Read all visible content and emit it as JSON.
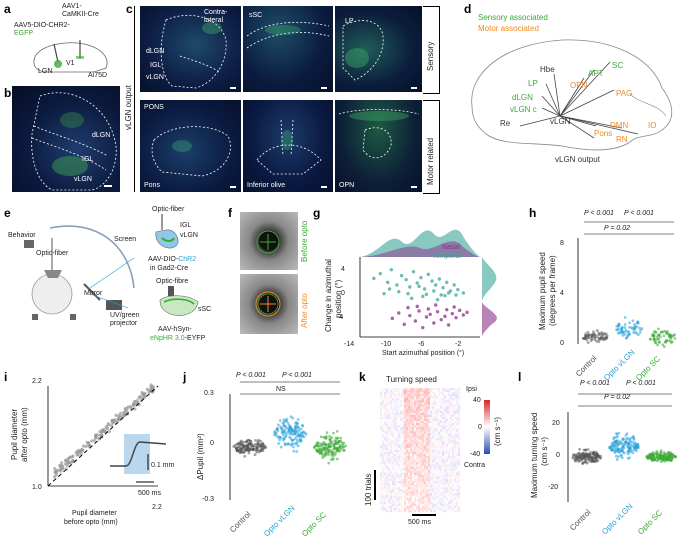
{
  "colors": {
    "sensory": "#3aaa35",
    "motor": "#f08a24",
    "opto_vlgn": "#29a3d8",
    "control": "#555555",
    "nasal": "#8b2f8b",
    "temporal": "#3aa59a"
  },
  "panel_labels": [
    "a",
    "b",
    "c",
    "d",
    "e",
    "f",
    "g",
    "h",
    "i",
    "j",
    "k",
    "l"
  ],
  "a": {
    "virus1": "AAV1-",
    "virus1b": "CaMKII-Cre",
    "virus2": "AAV5-DIO-CHR2-",
    "egfp": "EGFP",
    "v1": "V1",
    "lgn": "LGN",
    "mouse": "Ai75D"
  },
  "b": {
    "dlgn": "dLGN",
    "igl": "IGL",
    "vlgn": "vLGN"
  },
  "c": {
    "side_label": "vLGN output",
    "row_sensory": "Sensory",
    "row_motor": "Motor related",
    "p1_contra": "Contra-",
    "p1_lateral": "lateral",
    "p1_dlgn": "dLGN",
    "p1_igl": "IGL",
    "p1_vlgn": "vLGN",
    "p2_ssc": "sSC",
    "p3_lp": "LP",
    "p4_pons_top": "PONS",
    "p4_pons": "Pons",
    "p5_io": "Inferior olive",
    "p6_opn": "OPN"
  },
  "d": {
    "legend_sensory": "Sensory associated",
    "legend_motor": "Motor associated",
    "hbe": "Hbe",
    "apt": "APT",
    "sc": "SC",
    "lp": "LP",
    "opn": "OPN",
    "pag": "PAG",
    "dlgn": "dLGN",
    "vlgnc": "vLGN c",
    "re": "Re",
    "vlgn": "vLGN",
    "dmn": "DMN",
    "io": "IO",
    "pons": "Pons",
    "rn": "RN",
    "caption": "vLGN output"
  },
  "e": {
    "behavior": "Behavior",
    "optofiber": "Optic-fiber",
    "screen": "Screen",
    "mirror": "Mirror",
    "projector1": "UV/green",
    "projector2": "projector",
    "optofiber2": "Optic-fiber",
    "igl": "IGL",
    "vlgn": "vLGN",
    "aav1a": "AAV-DIO-",
    "chr2": "ChR2",
    "gad": "in Gad2-Cre",
    "optofibre3": "Optic-fibre",
    "ssc": "sSC",
    "aav2a": "AAV-hSyn-",
    "enphr": "eNpHR 3.0",
    "eyfp": "-EYFP"
  },
  "f": {
    "before": "Before opto",
    "after": "After opto"
  },
  "g": {
    "ylabel1": "Change in azimuthal",
    "ylabel2": "position (°)",
    "xlabel": "Start azimuthal position (°)",
    "legend_nasal": "Nasal",
    "legend_temporal": "Temporal",
    "xticks": [
      "-14",
      "-10",
      "-6",
      "-2"
    ],
    "yticks": [
      "4",
      "0",
      "-4"
    ]
  },
  "h": {
    "ylabel1": "Maximum pupil speed",
    "ylabel2": "(degrees per frame)",
    "yticks": [
      "0",
      "4",
      "8"
    ],
    "stat1": "P < 0.001",
    "stat2": "P < 0.001",
    "stat3": "P = 0.02",
    "cats": [
      "Control",
      "Opto vLGN",
      "Opto SC"
    ]
  },
  "i": {
    "ylabel1": "Pupil diameter",
    "ylabel2": "after opto (mm)",
    "xlabel1": "Pupil diameter",
    "xlabel2": "before opto (mm)",
    "tick_low": "1.0",
    "tick_high": "2.2",
    "xtick_high": "2.2",
    "scale_v": "0.1 mm",
    "scale_h": "500 ms"
  },
  "j": {
    "ylabel": "ΔPupil (mm²)",
    "yticks": [
      "0.3",
      "0",
      "-0.3"
    ],
    "stat1": "P < 0.001",
    "stat2": "P < 0.001",
    "ns": "NS",
    "cats": [
      "Control",
      "Opto vLGN",
      "Opto SC"
    ]
  },
  "k": {
    "title": "Turning speed",
    "cb_top": "40",
    "cb_mid": "0",
    "cb_bot": "-40",
    "ipsi": "Ipsi",
    "contra": "Contra",
    "unit": "(cm s⁻¹)",
    "trials": "100 trials",
    "time": "500 ms"
  },
  "l": {
    "ylabel1": "Maximum turning speed",
    "ylabel2": "(cm s⁻¹)",
    "yticks": [
      "20",
      "0",
      "-20"
    ],
    "stat1": "P < 0.001",
    "stat2": "P < 0.001",
    "stat3": "P = 0.02",
    "cats": [
      "Control",
      "Opto vLGN",
      "Opto SC"
    ]
  },
  "chart_data": [
    {
      "type": "scatter",
      "panel": "g",
      "xlabel": "Start azimuthal position (°)",
      "ylabel": "Change in azimuthal position (°)",
      "xlim": [
        -15,
        -2
      ],
      "ylim": [
        -6,
        6
      ],
      "series": [
        {
          "name": "Temporal",
          "x": [
            -13.5,
            -12.8,
            -12,
            -11.6,
            -11,
            -10.5,
            -10,
            -9.6,
            -9.2,
            -8.8,
            -8.4,
            -8,
            -7.6,
            -7.2,
            -6.8,
            -6.4,
            -6,
            -5.6,
            -5.2,
            -4.8,
            -4.4,
            -11.8,
            -10.8,
            -9.8,
            -8.6,
            -7.8,
            -7,
            -6.2,
            -5.4,
            -12.4,
            -9.4,
            -8.2,
            -6.6,
            -5.8,
            -4.6,
            -3.8
          ],
          "y": [
            2.8,
            3.5,
            2.2,
            4.1,
            1.8,
            3.2,
            2.6,
            1.5,
            3.8,
            2.1,
            2.9,
            1.2,
            3.4,
            2.4,
            1.8,
            2.7,
            1.4,
            2.2,
            0.9,
            1.8,
            1.1,
            1.2,
            0.8,
            0.5,
            1.6,
            0.4,
            0.9,
            0.3,
            0.6,
            0.5,
            -0.2,
            0.1,
            -0.4,
            0.2,
            0.3,
            0.6
          ]
        },
        {
          "name": "Nasal",
          "x": [
            -11.5,
            -10.8,
            -10.2,
            -9.6,
            -9,
            -8.6,
            -8.2,
            -7.8,
            -7.4,
            -7,
            -6.6,
            -6.2,
            -5.8,
            -5.4,
            -5,
            -4.6,
            -4.2,
            -3.8,
            -9.8,
            -8.8,
            -7.6,
            -6.8,
            -5.6,
            -4.8,
            -3.4
          ],
          "y": [
            -3.2,
            -2.4,
            -4.1,
            -2.8,
            -3.6,
            -2.1,
            -4.6,
            -3,
            -2.6,
            -3.9,
            -2.2,
            -3.4,
            -2.9,
            -4.2,
            -2.5,
            -3.1,
            -2,
            -2.7,
            -1.6,
            -1.4,
            -1.8,
            -1.2,
            -1.9,
            -1.5,
            -2.3
          ]
        }
      ]
    },
    {
      "type": "scatter",
      "panel": "h",
      "categories": [
        "Control",
        "Opto vLGN",
        "Opto SC"
      ],
      "ylabel": "Maximum pupil speed (degrees per frame)",
      "ylim": [
        0,
        8
      ],
      "series": [
        {
          "name": "Control",
          "center": 0.6,
          "spread": 0.6
        },
        {
          "name": "Opto vLGN",
          "center": 1.2,
          "spread": 1.0
        },
        {
          "name": "Opto SC",
          "center": 0.5,
          "spread": 0.9
        }
      ]
    },
    {
      "type": "scatter",
      "panel": "i",
      "xlabel": "Pupil diameter before opto (mm)",
      "ylabel": "Pupil diameter after opto (mm)",
      "xlim": [
        1.0,
        2.2
      ],
      "ylim": [
        1.0,
        2.2
      ]
    },
    {
      "type": "scatter",
      "panel": "j",
      "categories": [
        "Control",
        "Opto vLGN",
        "Opto SC"
      ],
      "ylabel": "ΔPupil (mm²)",
      "ylim": [
        -0.3,
        0.3
      ],
      "series": [
        {
          "name": "Control",
          "center": 0.0,
          "spread": 0.06
        },
        {
          "name": "Opto vLGN",
          "center": 0.08,
          "spread": 0.12
        },
        {
          "name": "Opto SC",
          "center": 0.0,
          "spread": 0.1
        }
      ]
    },
    {
      "type": "heatmap",
      "panel": "k",
      "title": "Turning speed",
      "colorbar": [
        -40,
        40
      ]
    },
    {
      "type": "scatter",
      "panel": "l",
      "categories": [
        "Control",
        "Opto vLGN",
        "Opto SC"
      ],
      "ylabel": "Maximum turning speed (cm s⁻¹)",
      "ylim": [
        -25,
        25
      ],
      "series": [
        {
          "name": "Control",
          "center": 0,
          "spread": 5
        },
        {
          "name": "Opto vLGN",
          "center": 6,
          "spread": 9
        },
        {
          "name": "Opto SC",
          "center": 0,
          "spread": 4
        }
      ]
    }
  ]
}
